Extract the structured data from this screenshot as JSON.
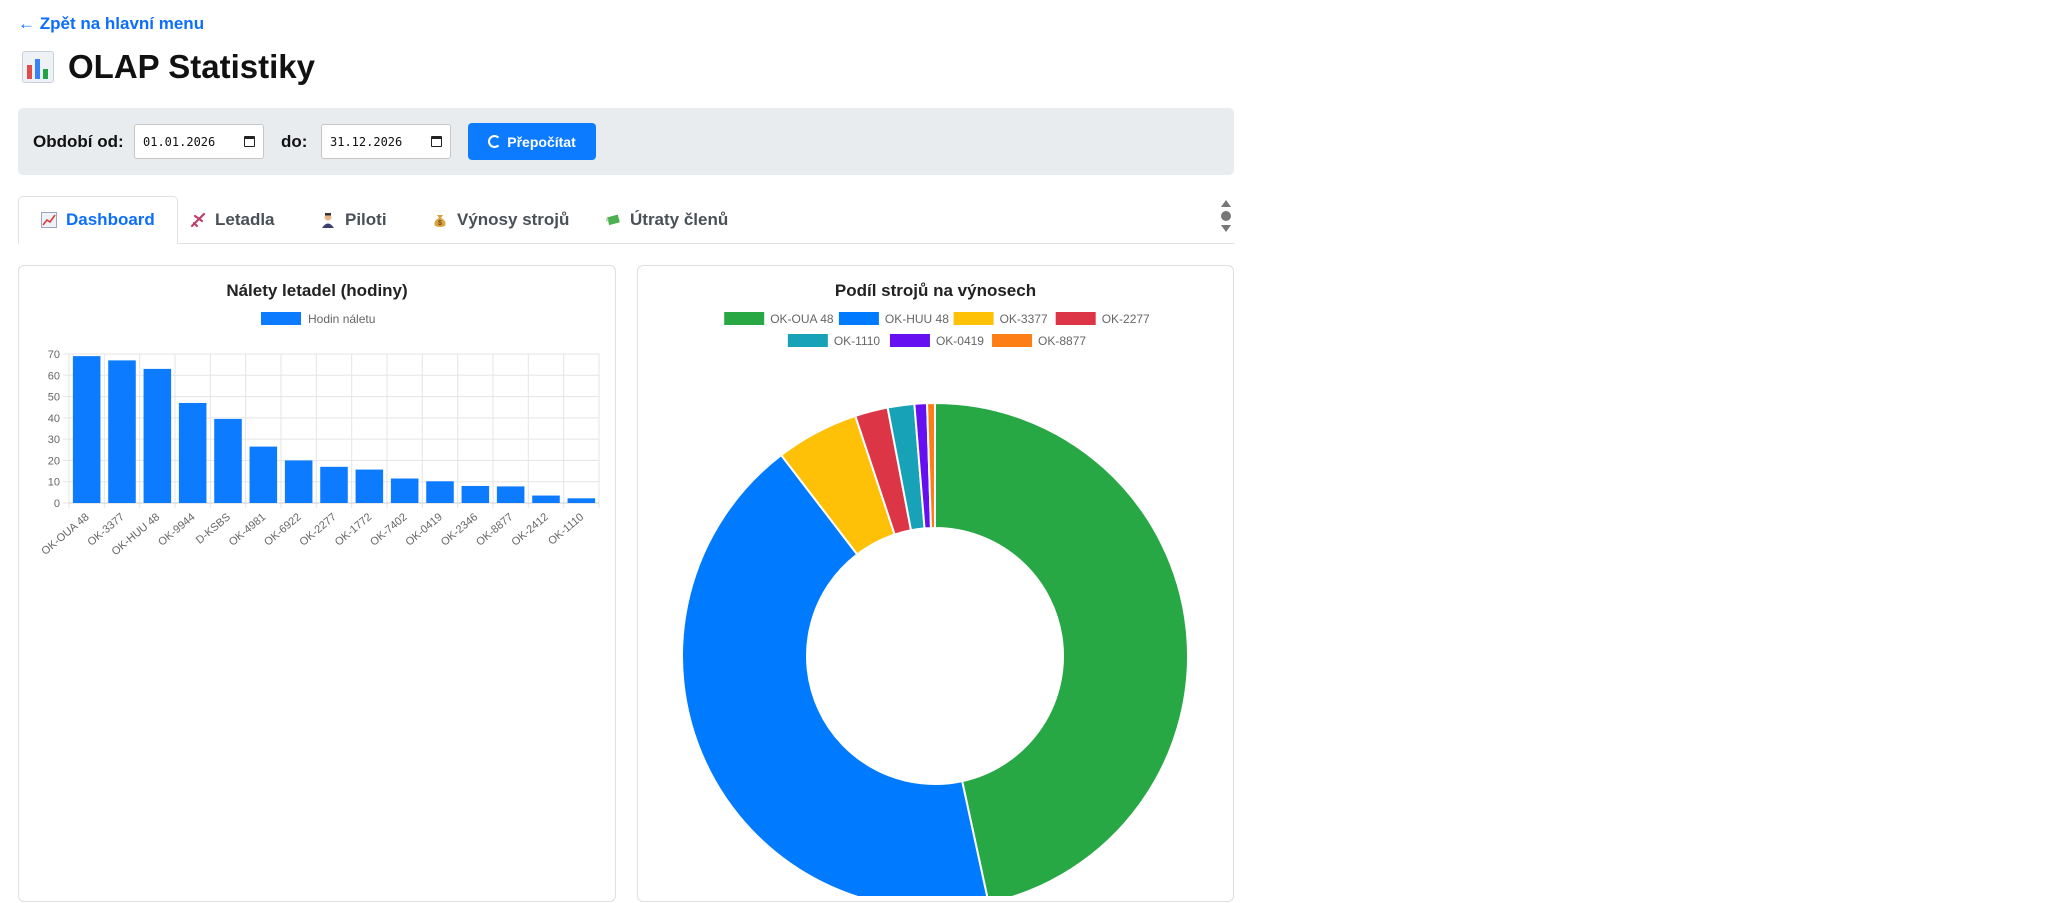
{
  "nav": {
    "back_label": "← Zpět na hlavní menu"
  },
  "header": {
    "title": "OLAP Statistiky",
    "icon": "bar-chart-icon"
  },
  "filters": {
    "from_label": "Období od:",
    "from_value": "01.01.2026",
    "to_label": "do:",
    "to_value": "31.12.2026",
    "recalc_label": "Přepočítat"
  },
  "tabs": [
    {
      "label": "Dashboard",
      "icon": "chart-increasing-icon",
      "active": true
    },
    {
      "label": "Letadla",
      "icon": "airplane-icon",
      "active": false
    },
    {
      "label": "Piloti",
      "icon": "pilot-icon",
      "active": false
    },
    {
      "label": "Výnosy strojů",
      "icon": "money-bag-icon",
      "active": false
    },
    {
      "label": "Útraty členů",
      "icon": "money-wings-icon",
      "active": false
    }
  ],
  "colors": {
    "accent": "#0d6efd",
    "bar": "#0d7bff"
  },
  "chart_data": [
    {
      "type": "bar",
      "title": "Nálety letadel (hodiny)",
      "categories": [
        "OK-OUA 48",
        "OK-3377",
        "OK-HUU 48",
        "OK-9944",
        "D-KSBS",
        "OK-4981",
        "OK-6922",
        "OK-2277",
        "OK-1772",
        "OK-7402",
        "OK-0419",
        "OK-2346",
        "OK-8877",
        "OK-2412",
        "OK-1110"
      ],
      "series": [
        {
          "name": "Hodin náletu",
          "color": "#0d7bff",
          "values": [
            69,
            67,
            63,
            47,
            39.5,
            26.5,
            20,
            17,
            15.7,
            11.5,
            10.2,
            8,
            7.8,
            3.5,
            2.2
          ]
        }
      ],
      "ylim": [
        0,
        70
      ],
      "yticks": [
        0,
        10,
        20,
        30,
        40,
        50,
        60,
        70
      ],
      "legend": "top",
      "grid": true
    },
    {
      "type": "pie",
      "donut": true,
      "title": "Podíl strojů na výnosech",
      "legend": "top",
      "slices": [
        {
          "label": "OK-OUA 48",
          "value": 46.6,
          "color": "#28a745"
        },
        {
          "label": "OK-HUU 48",
          "value": 43.0,
          "color": "#007bff"
        },
        {
          "label": "OK-3377",
          "value": 5.3,
          "color": "#ffc107"
        },
        {
          "label": "OK-2277",
          "value": 2.1,
          "color": "#dc3545"
        },
        {
          "label": "OK-1110",
          "value": 1.7,
          "color": "#17a2b8"
        },
        {
          "label": "OK-0419",
          "value": 0.8,
          "color": "#6610f2"
        },
        {
          "label": "OK-8877",
          "value": 0.5,
          "color": "#fd7e14"
        }
      ]
    }
  ]
}
